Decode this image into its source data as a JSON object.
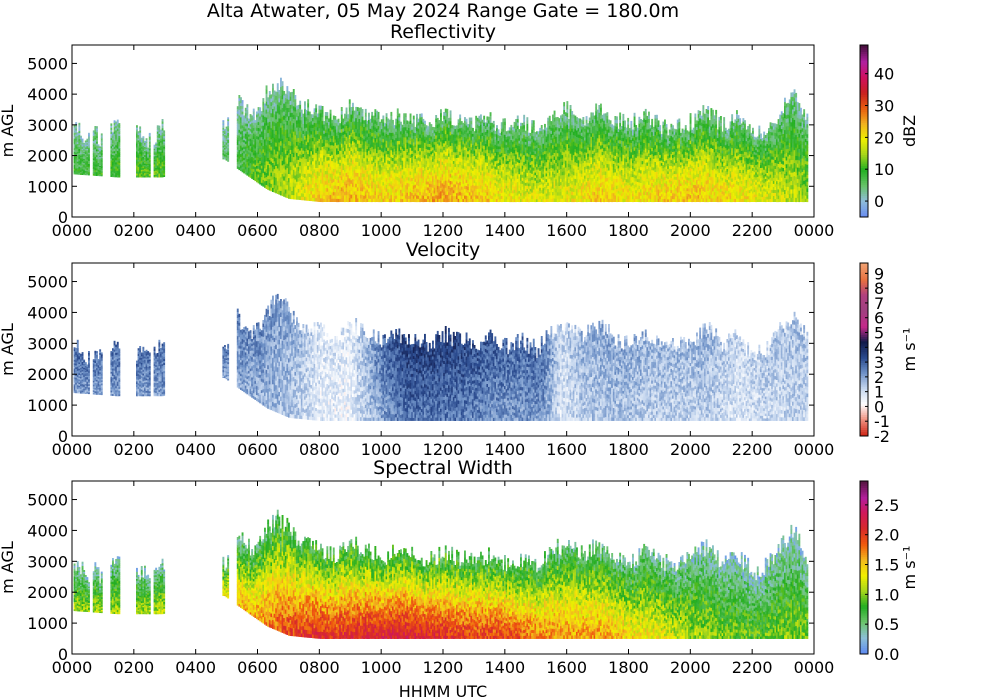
{
  "figure": {
    "title": "Alta Atwater, 05 May 2024 Range Gate = 180.0m",
    "xlabel": "HHMM UTC",
    "ylabel": "m AGL",
    "x_tick_labels": [
      "0000",
      "0200",
      "0400",
      "0600",
      "0800",
      "1000",
      "1200",
      "1400",
      "1600",
      "1800",
      "2000",
      "2200",
      "0000"
    ],
    "y_tick_labels": [
      "0",
      "1000",
      "2000",
      "3000",
      "4000",
      "5000"
    ]
  },
  "chart_data": [
    {
      "type": "heatmap",
      "title": "Reflectivity",
      "ylabel": "m AGL",
      "xlabel": "",
      "xlim_hours": [
        0,
        24
      ],
      "ylim": [
        0,
        5600
      ],
      "grid": false,
      "colorbar": {
        "label": "dBZ",
        "range": [
          -5,
          49
        ],
        "ticks": [
          0,
          10,
          20,
          30,
          40
        ],
        "tick_labels": [
          "0",
          "10",
          "20",
          "30",
          "40"
        ],
        "colors": [
          "#6b8ff0",
          "#8fbcd8",
          "#66c266",
          "#22b022",
          "#a8d61a",
          "#f0f000",
          "#f0b020",
          "#e85c10",
          "#c82020",
          "#d01060",
          "#b020a0",
          "#4a1040"
        ]
      },
      "echo_top_m": [
        [
          0.05,
          2900
        ],
        [
          0.35,
          2700
        ],
        [
          0.45,
          2200
        ],
        [
          0.6,
          2800
        ],
        [
          1.0,
          2500
        ],
        [
          1.45,
          3000
        ],
        [
          2.15,
          2700
        ],
        [
          2.55,
          2500
        ],
        [
          2.9,
          3000
        ],
        [
          4.9,
          2900
        ],
        [
          5.3,
          3900
        ],
        [
          5.6,
          3500
        ],
        [
          5.9,
          3300
        ],
        [
          6.3,
          4100
        ],
        [
          6.6,
          4400
        ],
        [
          6.9,
          4200
        ],
        [
          7.1,
          3900
        ],
        [
          7.5,
          3600
        ],
        [
          8.0,
          3400
        ],
        [
          8.5,
          3200
        ],
        [
          9.0,
          3600
        ],
        [
          9.5,
          3400
        ],
        [
          10.0,
          3100
        ],
        [
          10.5,
          3300
        ],
        [
          11.0,
          3200
        ],
        [
          11.5,
          3000
        ],
        [
          12.0,
          3300
        ],
        [
          12.5,
          3100
        ],
        [
          13.0,
          3000
        ],
        [
          13.5,
          3200
        ],
        [
          14.0,
          2900
        ],
        [
          14.5,
          3100
        ],
        [
          15.0,
          2800
        ],
        [
          15.5,
          3400
        ],
        [
          16.0,
          3500
        ],
        [
          16.5,
          3200
        ],
        [
          17.0,
          3600
        ],
        [
          17.5,
          3200
        ],
        [
          18.0,
          3000
        ],
        [
          18.5,
          3300
        ],
        [
          19.0,
          3000
        ],
        [
          19.5,
          2900
        ],
        [
          20.0,
          3100
        ],
        [
          20.5,
          3500
        ],
        [
          21.0,
          3000
        ],
        [
          21.5,
          3300
        ],
        [
          22.0,
          2600
        ],
        [
          22.5,
          2900
        ],
        [
          23.0,
          3600
        ],
        [
          23.4,
          4100
        ],
        [
          23.8,
          3000
        ]
      ],
      "echo_base_m": [
        [
          0.05,
          1400
        ],
        [
          1.45,
          1300
        ],
        [
          2.9,
          1300
        ],
        [
          4.9,
          1900
        ],
        [
          5.3,
          1600
        ],
        [
          6.3,
          900
        ],
        [
          7.0,
          600
        ],
        [
          8.0,
          500
        ],
        [
          10.0,
          500
        ],
        [
          12.0,
          500
        ],
        [
          14.0,
          500
        ],
        [
          16.0,
          500
        ],
        [
          18.0,
          500
        ],
        [
          20.0,
          500
        ],
        [
          22.0,
          500
        ],
        [
          23.8,
          500
        ]
      ],
      "coverage_segments_hours": [
        [
          0.05,
          0.55
        ],
        [
          0.65,
          0.95
        ],
        [
          1.2,
          1.55
        ],
        [
          2.05,
          2.5
        ],
        [
          2.6,
          2.95
        ],
        [
          4.85,
          5.05
        ],
        [
          5.3,
          23.8
        ]
      ],
      "core_dbz_by_hour": [
        [
          0.5,
          8
        ],
        [
          2.5,
          12
        ],
        [
          5.0,
          5
        ],
        [
          6.0,
          12
        ],
        [
          7.0,
          16
        ],
        [
          8.0,
          22
        ],
        [
          9.0,
          24
        ],
        [
          10.0,
          21
        ],
        [
          11.0,
          23
        ],
        [
          12.0,
          25
        ],
        [
          13.0,
          23
        ],
        [
          14.0,
          20
        ],
        [
          15.0,
          18
        ],
        [
          16.0,
          19
        ],
        [
          17.0,
          22
        ],
        [
          18.0,
          20
        ],
        [
          19.0,
          22
        ],
        [
          20.0,
          23
        ],
        [
          21.0,
          21
        ],
        [
          22.0,
          20
        ],
        [
          23.0,
          17
        ],
        [
          23.8,
          14
        ]
      ]
    },
    {
      "type": "heatmap",
      "title": "Velocity",
      "ylabel": "m AGL",
      "xlabel": "",
      "xlim_hours": [
        0,
        24
      ],
      "ylim": [
        0,
        5600
      ],
      "grid": false,
      "colorbar": {
        "label": "m s⁻¹",
        "range": [
          -2,
          9.7
        ],
        "ticks": [
          -2,
          -1,
          0,
          1,
          2,
          3,
          4,
          5,
          6,
          7,
          8,
          9
        ],
        "tick_labels": [
          "-2",
          "-1",
          "0",
          "1",
          "2",
          "3",
          "4",
          "5",
          "6",
          "7",
          "8",
          "9"
        ],
        "colors": [
          "#d02818",
          "#ee9080",
          "#ffffff",
          "#c6d7ef",
          "#7093c8",
          "#2a4a8e",
          "#111a4a",
          "#c62a8a",
          "#a04080",
          "#b04080",
          "#e87040",
          "#f0a070"
        ]
      },
      "echo_top_m": [
        [
          0.05,
          2900
        ],
        [
          0.35,
          2700
        ],
        [
          0.45,
          2200
        ],
        [
          0.6,
          2800
        ],
        [
          1.0,
          2500
        ],
        [
          1.45,
          3000
        ],
        [
          2.15,
          2700
        ],
        [
          2.55,
          2500
        ],
        [
          2.9,
          3000
        ],
        [
          4.9,
          2900
        ],
        [
          5.3,
          3900
        ],
        [
          5.6,
          3500
        ],
        [
          5.9,
          3300
        ],
        [
          6.3,
          4100
        ],
        [
          6.6,
          4400
        ],
        [
          6.9,
          4200
        ],
        [
          7.1,
          3900
        ],
        [
          7.5,
          3600
        ],
        [
          8.0,
          3400
        ],
        [
          8.5,
          3200
        ],
        [
          9.0,
          3600
        ],
        [
          9.5,
          3400
        ],
        [
          10.0,
          3100
        ],
        [
          10.5,
          3300
        ],
        [
          11.0,
          3200
        ],
        [
          11.5,
          3000
        ],
        [
          12.0,
          3300
        ],
        [
          12.5,
          3100
        ],
        [
          13.0,
          3000
        ],
        [
          13.5,
          3200
        ],
        [
          14.0,
          2900
        ],
        [
          14.5,
          3100
        ],
        [
          15.0,
          2800
        ],
        [
          15.5,
          3400
        ],
        [
          16.0,
          3500
        ],
        [
          16.5,
          3200
        ],
        [
          17.0,
          3600
        ],
        [
          17.5,
          3200
        ],
        [
          18.0,
          3000
        ],
        [
          18.5,
          3300
        ],
        [
          19.0,
          3000
        ],
        [
          19.5,
          2900
        ],
        [
          20.0,
          3100
        ],
        [
          20.5,
          3500
        ],
        [
          21.0,
          3000
        ],
        [
          21.5,
          3300
        ],
        [
          22.0,
          2600
        ],
        [
          22.5,
          2900
        ],
        [
          23.0,
          3600
        ],
        [
          23.4,
          4100
        ],
        [
          23.8,
          3000
        ]
      ],
      "echo_base_m": [
        [
          0.05,
          1400
        ],
        [
          1.45,
          1300
        ],
        [
          2.9,
          1300
        ],
        [
          4.9,
          1900
        ],
        [
          5.3,
          1600
        ],
        [
          6.3,
          900
        ],
        [
          7.0,
          600
        ],
        [
          8.0,
          500
        ],
        [
          10.0,
          500
        ],
        [
          12.0,
          500
        ],
        [
          14.0,
          500
        ],
        [
          16.0,
          500
        ],
        [
          18.0,
          500
        ],
        [
          20.0,
          500
        ],
        [
          22.0,
          500
        ],
        [
          23.8,
          500
        ]
      ],
      "coverage_segments_hours": [
        [
          0.05,
          0.55
        ],
        [
          0.65,
          0.95
        ],
        [
          1.2,
          1.55
        ],
        [
          2.05,
          2.5
        ],
        [
          2.6,
          2.95
        ],
        [
          4.85,
          5.05
        ],
        [
          5.3,
          23.8
        ]
      ],
      "core_velocity_by_hour": [
        [
          0.5,
          2.6
        ],
        [
          2.5,
          2.6
        ],
        [
          5.0,
          2.4
        ],
        [
          6.0,
          2.2
        ],
        [
          7.0,
          1.8
        ],
        [
          8.0,
          0.8
        ],
        [
          9.0,
          0.7
        ],
        [
          10.0,
          2.5
        ],
        [
          10.7,
          3.3
        ],
        [
          11.5,
          3.3
        ],
        [
          12.5,
          3.2
        ],
        [
          13.5,
          2.8
        ],
        [
          14.5,
          2.6
        ],
        [
          15.2,
          2.7
        ],
        [
          15.8,
          1.0
        ],
        [
          16.5,
          1.6
        ],
        [
          17.5,
          1.8
        ],
        [
          18.5,
          1.6
        ],
        [
          19.5,
          1.5
        ],
        [
          20.5,
          1.6
        ],
        [
          21.5,
          1.0
        ],
        [
          22.5,
          1.3
        ],
        [
          23.5,
          1.4
        ]
      ]
    },
    {
      "type": "heatmap",
      "title": "Spectral Width",
      "ylabel": "m AGL",
      "xlabel": "HHMM UTC",
      "xlim_hours": [
        0,
        24
      ],
      "ylim": [
        0,
        5600
      ],
      "grid": false,
      "colorbar": {
        "label": "m s⁻¹",
        "range": [
          0,
          2.9
        ],
        "ticks": [
          0.0,
          0.5,
          1.0,
          1.5,
          2.0,
          2.5
        ],
        "tick_labels": [
          "0.0",
          "0.5",
          "1.0",
          "1.5",
          "2.0",
          "2.5"
        ],
        "colors": [
          "#5f8bf0",
          "#8cc0d6",
          "#6cc46c",
          "#22ad22",
          "#a6d61c",
          "#f2f000",
          "#f2b81f",
          "#f05a0c",
          "#d82a2a",
          "#d01858",
          "#b41e9c",
          "#5a1646"
        ]
      },
      "echo_top_m": [
        [
          0.05,
          2900
        ],
        [
          0.35,
          2700
        ],
        [
          0.45,
          2200
        ],
        [
          0.6,
          2800
        ],
        [
          1.0,
          2500
        ],
        [
          1.45,
          3000
        ],
        [
          2.15,
          2700
        ],
        [
          2.55,
          2500
        ],
        [
          2.9,
          3000
        ],
        [
          4.9,
          2900
        ],
        [
          5.3,
          3900
        ],
        [
          5.6,
          3500
        ],
        [
          5.9,
          3300
        ],
        [
          6.3,
          4100
        ],
        [
          6.6,
          4400
        ],
        [
          6.9,
          4200
        ],
        [
          7.1,
          3900
        ],
        [
          7.5,
          3600
        ],
        [
          8.0,
          3400
        ],
        [
          8.5,
          3200
        ],
        [
          9.0,
          3600
        ],
        [
          9.5,
          3400
        ],
        [
          10.0,
          3100
        ],
        [
          10.5,
          3300
        ],
        [
          11.0,
          3200
        ],
        [
          11.5,
          3000
        ],
        [
          12.0,
          3300
        ],
        [
          12.5,
          3100
        ],
        [
          13.0,
          3000
        ],
        [
          13.5,
          3200
        ],
        [
          14.0,
          2900
        ],
        [
          14.5,
          3100
        ],
        [
          15.0,
          2800
        ],
        [
          15.5,
          3400
        ],
        [
          16.0,
          3500
        ],
        [
          16.5,
          3200
        ],
        [
          17.0,
          3600
        ],
        [
          17.5,
          3200
        ],
        [
          18.0,
          3000
        ],
        [
          18.5,
          3300
        ],
        [
          19.0,
          3000
        ],
        [
          19.5,
          2900
        ],
        [
          20.0,
          3100
        ],
        [
          20.5,
          3500
        ],
        [
          21.0,
          3000
        ],
        [
          21.5,
          3300
        ],
        [
          22.0,
          2600
        ],
        [
          22.5,
          2900
        ],
        [
          23.0,
          3600
        ],
        [
          23.4,
          4100
        ],
        [
          23.8,
          3000
        ]
      ],
      "echo_base_m": [
        [
          0.05,
          1400
        ],
        [
          1.45,
          1300
        ],
        [
          2.9,
          1300
        ],
        [
          4.9,
          1900
        ],
        [
          5.3,
          1600
        ],
        [
          6.3,
          900
        ],
        [
          7.0,
          600
        ],
        [
          8.0,
          500
        ],
        [
          10.0,
          500
        ],
        [
          12.0,
          500
        ],
        [
          14.0,
          500
        ],
        [
          16.0,
          500
        ],
        [
          18.0,
          500
        ],
        [
          20.0,
          500
        ],
        [
          22.0,
          500
        ],
        [
          23.8,
          500
        ]
      ],
      "coverage_segments_hours": [
        [
          0.05,
          0.55
        ],
        [
          0.65,
          0.95
        ],
        [
          1.2,
          1.55
        ],
        [
          2.05,
          2.5
        ],
        [
          2.6,
          2.95
        ],
        [
          4.85,
          5.05
        ],
        [
          5.3,
          23.8
        ]
      ],
      "core_width_by_hour": [
        [
          0.5,
          1.0
        ],
        [
          2.5,
          1.0
        ],
        [
          5.0,
          1.3
        ],
        [
          6.0,
          1.5
        ],
        [
          7.0,
          1.8
        ],
        [
          8.0,
          1.9
        ],
        [
          9.0,
          1.9
        ],
        [
          10.0,
          2.0
        ],
        [
          11.0,
          2.0
        ],
        [
          12.0,
          1.9
        ],
        [
          13.0,
          1.8
        ],
        [
          14.0,
          1.8
        ],
        [
          15.0,
          1.6
        ],
        [
          16.0,
          1.5
        ],
        [
          17.0,
          1.5
        ],
        [
          18.0,
          1.3
        ],
        [
          19.0,
          1.2
        ],
        [
          20.0,
          1.0
        ],
        [
          21.0,
          0.9
        ],
        [
          22.0,
          0.8
        ],
        [
          23.0,
          0.9
        ],
        [
          23.8,
          0.9
        ]
      ]
    }
  ]
}
